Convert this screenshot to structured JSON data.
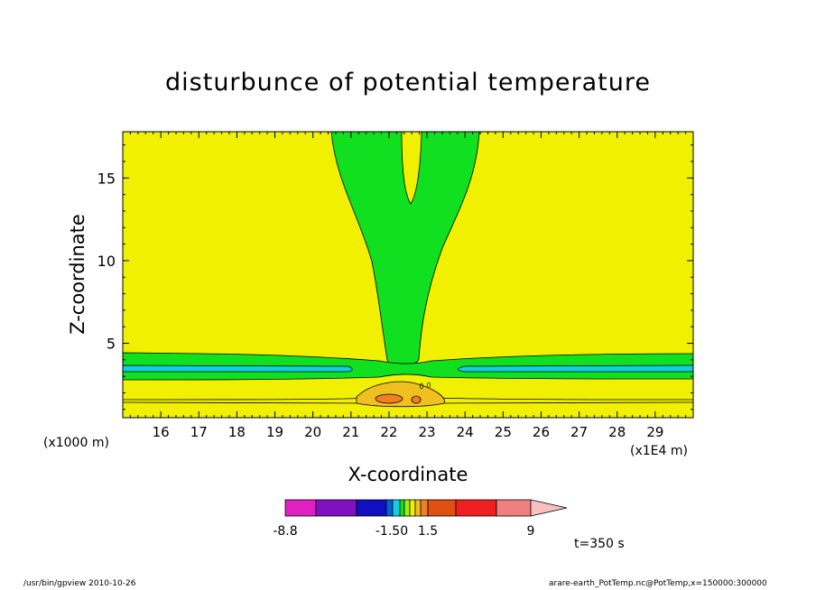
{
  "chart_data": {
    "type": "heatmap",
    "title": "disturbunce of potential temperature",
    "xlabel": "X-coordinate",
    "ylabel": "Z-coordinate",
    "x_unit": "(x1000 m)",
    "x_exponent": "(x1E4 m)",
    "x_ticks": [
      16,
      17,
      18,
      19,
      20,
      21,
      22,
      23,
      24,
      25,
      26,
      27,
      28,
      29
    ],
    "y_ticks": [
      5,
      10,
      15
    ],
    "xlim": [
      15.0,
      30.0
    ],
    "ylim": [
      0.5,
      17.8
    ],
    "colorbar": {
      "tick_labels": [
        "-8.8",
        "-1.50",
        "1.5",
        "9"
      ],
      "colors": [
        "#e020c0",
        "#8010c0",
        "#1010c0",
        "#0060e0",
        "#10d0e0",
        "#10e020",
        "#a0f000",
        "#f0f000",
        "#f0c020",
        "#f08020",
        "#e05010",
        "#f02020",
        "#f08080",
        "#f8c0c0"
      ]
    },
    "regions": [
      {
        "name": "background",
        "color": "#f0f000"
      },
      {
        "name": "plume",
        "color": "#10e020"
      },
      {
        "name": "low-layer",
        "color": "#10e020"
      },
      {
        "name": "blue-band",
        "color": "#10d0e0"
      },
      {
        "name": "warm-blob",
        "color": "#f0c020"
      },
      {
        "name": "hot-core",
        "color": "#f08020"
      }
    ]
  },
  "annotations": {
    "time": "t=350 s",
    "footer_left": "/usr/bin/gpview   2010-10-26",
    "footer_right": "arare-earth_PotTemp.nc@PotTemp,x=150000:300000"
  }
}
